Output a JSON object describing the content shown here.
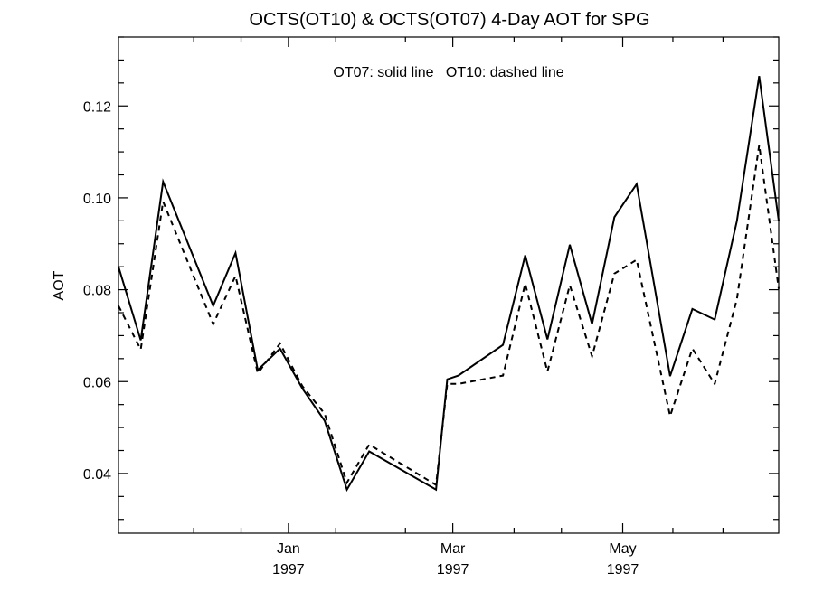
{
  "chart_data": {
    "type": "line",
    "title": "OCTS(OT10) & OCTS(OT07) 4-Day AOT for SPG",
    "annotation": "OT07: solid line   OT10: dashed line",
    "xlabel": "",
    "ylabel": "AOT",
    "xlim": [
      "1996-11-01",
      "1997-06-26"
    ],
    "ylim": [
      0.027,
      0.135
    ],
    "y_ticks": [
      0.04,
      0.06,
      0.08,
      0.1,
      0.12
    ],
    "y_tick_labels": [
      "0.04",
      "0.06",
      "0.08",
      "0.10",
      "0.12"
    ],
    "y_minor_step": 0.005,
    "x_ticks": [
      {
        "date": "1997-01-01",
        "label1": "Jan",
        "label2": "1997"
      },
      {
        "date": "1997-03-01",
        "label1": "Mar",
        "label2": "1997"
      },
      {
        "date": "1997-05-01",
        "label1": "May",
        "label2": "1997"
      }
    ],
    "x_minor_ticks": [
      "1996-11-28",
      "1996-12-15",
      "1997-01-18",
      "1997-02-12",
      "1997-03-23",
      "1997-04-09",
      "1997-05-19",
      "1997-06-06"
    ],
    "grid": false,
    "series": [
      {
        "name": "OT07",
        "style": "solid",
        "color": "#000000",
        "x": [
          "1996-11-01",
          "1996-11-09",
          "1996-11-17",
          "1996-12-05",
          "1996-12-13",
          "1996-12-21",
          "1996-12-29",
          "1997-01-06",
          "1997-01-14",
          "1997-01-22",
          "1997-01-30",
          "1997-02-23",
          "1997-02-27",
          "1997-03-03",
          "1997-03-19",
          "1997-03-27",
          "1997-04-04",
          "1997-04-12",
          "1997-04-20",
          "1997-04-28",
          "1997-05-06",
          "1997-05-18",
          "1997-05-26",
          "1997-06-03",
          "1997-06-11",
          "1997-06-19",
          "1997-06-26"
        ],
        "y": [
          0.085,
          0.069,
          0.1035,
          0.0765,
          0.088,
          0.0625,
          0.0672,
          0.0585,
          0.0515,
          0.0365,
          0.0448,
          0.0365,
          0.0605,
          0.0613,
          0.068,
          0.0875,
          0.0692,
          0.0898,
          0.0725,
          0.0958,
          0.103,
          0.0612,
          0.0758,
          0.0735,
          0.095,
          0.1265,
          0.095
        ]
      },
      {
        "name": "OT10",
        "style": "dashed",
        "color": "#000000",
        "x": [
          "1996-11-01",
          "1996-11-09",
          "1996-11-17",
          "1996-12-05",
          "1996-12-13",
          "1996-12-21",
          "1996-12-29",
          "1997-01-06",
          "1997-01-14",
          "1997-01-22",
          "1997-01-30",
          "1997-02-23",
          "1997-02-27",
          "1997-03-03",
          "1997-03-19",
          "1997-03-27",
          "1997-04-04",
          "1997-04-12",
          "1997-04-20",
          "1997-04-28",
          "1997-05-06",
          "1997-05-18",
          "1997-05-26",
          "1997-06-03",
          "1997-06-11",
          "1997-06-19",
          "1997-06-26"
        ],
        "y": [
          0.0765,
          0.067,
          0.0992,
          0.0725,
          0.083,
          0.0618,
          0.0683,
          0.059,
          0.053,
          0.038,
          0.0463,
          0.0375,
          0.0595,
          0.0595,
          0.0613,
          0.0813,
          0.0622,
          0.081,
          0.0655,
          0.0835,
          0.0865,
          0.0525,
          0.0672,
          0.0595,
          0.078,
          0.1115,
          0.0802
        ]
      }
    ]
  }
}
